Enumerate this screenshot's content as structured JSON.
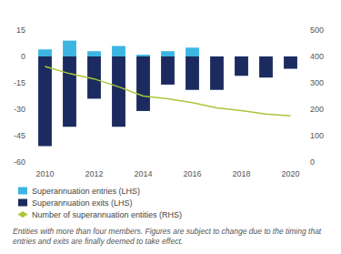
{
  "chart_data": {
    "type": "bar",
    "categories": [
      "2010",
      null,
      "2012",
      null,
      "2014",
      null,
      "2016",
      null,
      "2018",
      null,
      "2020"
    ],
    "series": [
      {
        "name": "Superannuation entries (LHS)",
        "color": "#3db5e3",
        "type": "bar",
        "values": [
          4,
          9,
          3,
          6,
          1,
          3,
          5,
          0,
          0,
          0,
          0
        ]
      },
      {
        "name": "Superannuation exits (LHS)",
        "color": "#1c2b5f",
        "type": "bar",
        "values": [
          -51,
          -40,
          -24,
          -40,
          -31,
          -16,
          -19,
          -19,
          -11,
          -12,
          -7
        ]
      },
      {
        "name": "Number of superannuation entities (RHS)",
        "color": "#a9c63a",
        "type": "line",
        "axis": "y2",
        "values": [
          362,
          335,
          315,
          285,
          250,
          240,
          225,
          205,
          195,
          182,
          175
        ]
      }
    ],
    "ylim": [
      -60,
      15
    ],
    "yticks": [
      -60,
      -45,
      -30,
      -15,
      0,
      15
    ],
    "y2lim": [
      0,
      500
    ],
    "y2ticks": [
      0,
      100,
      200,
      300,
      400,
      500
    ],
    "stacked": true,
    "grid": false,
    "legend": "bottom-left",
    "annotations": [
      "Entities with more than four members. Figures are subject to change due to the timing that entries and exits are finally deemed to take effect."
    ]
  }
}
